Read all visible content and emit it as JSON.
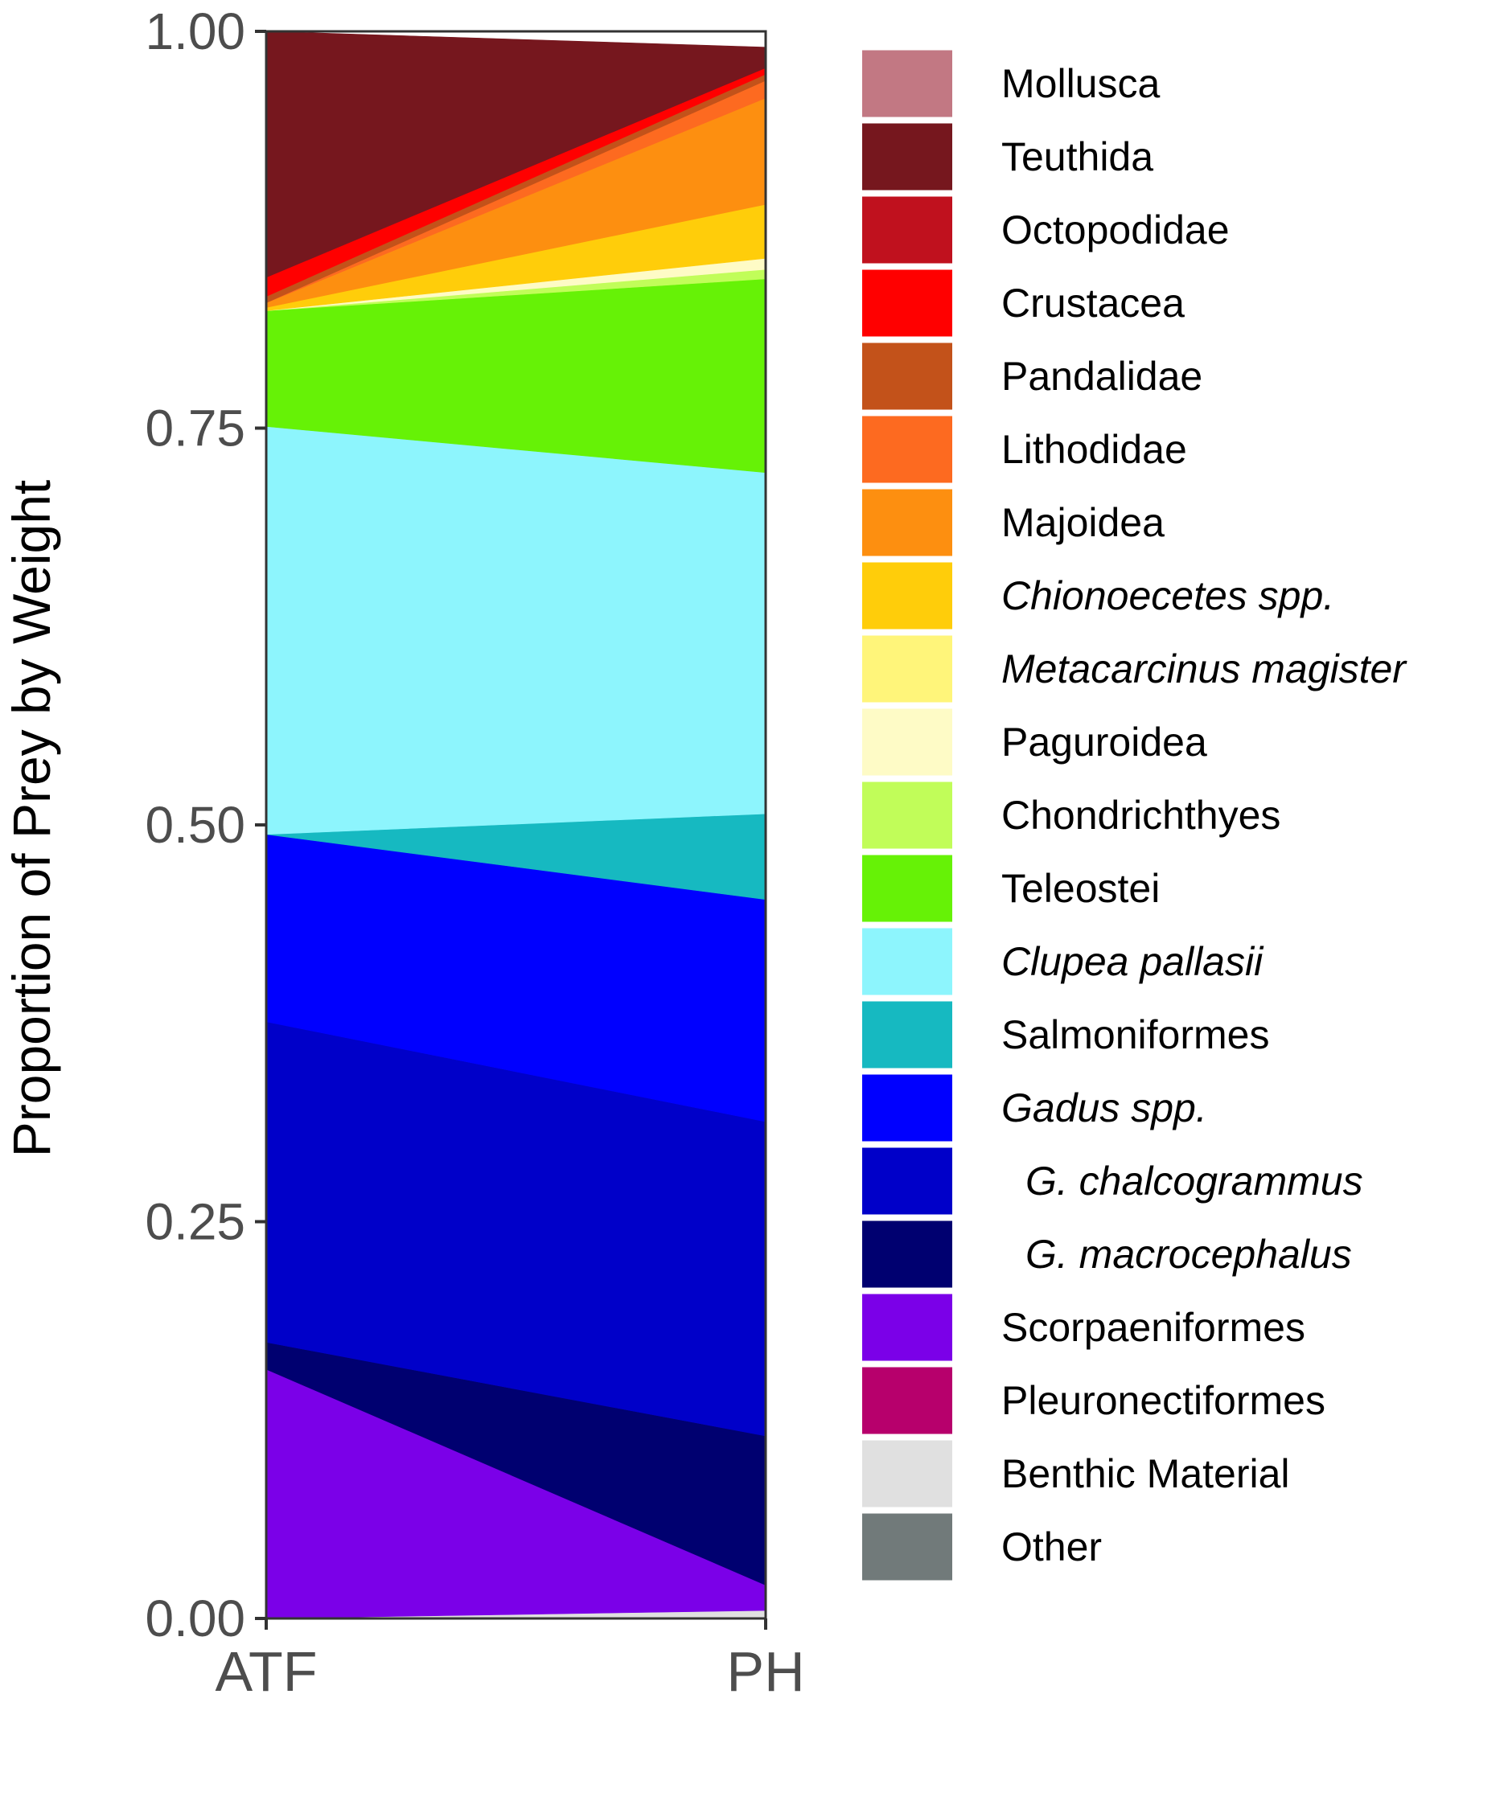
{
  "chart_data": {
    "type": "area",
    "x": [
      "ATF",
      "PH"
    ],
    "xlabel": "",
    "ylabel": "Proportion of Prey by Weight",
    "ylim": [
      0,
      1
    ],
    "yticks": [
      "0.00",
      "0.25",
      "0.50",
      "0.75",
      "1.00"
    ],
    "legend_position": "right",
    "grid": false,
    "stacking_order": "first series at top, last series at bottom",
    "series": [
      {
        "name": "Mollusca",
        "color": "#c27883",
        "italic": false,
        "values": [
          0.0,
          0.0
        ]
      },
      {
        "name": "Teuthida",
        "color": "#76171e",
        "italic": false,
        "values": [
          0.155,
          0.013
        ]
      },
      {
        "name": "Octopodidae",
        "color": "#c0111e",
        "italic": false,
        "values": [
          0.0,
          0.0
        ]
      },
      {
        "name": "Crustacea",
        "color": "#ff0000",
        "italic": false,
        "values": [
          0.012,
          0.004
        ]
      },
      {
        "name": "Pandalidae",
        "color": "#c3521a",
        "italic": false,
        "values": [
          0.004,
          0.004
        ]
      },
      {
        "name": "Lithodidae",
        "color": "#fd6a20",
        "italic": false,
        "values": [
          0.0,
          0.011
        ]
      },
      {
        "name": "Majoidea",
        "color": "#fd8f10",
        "italic": false,
        "values": [
          0.003,
          0.067
        ]
      },
      {
        "name": "Chionoecetes spp.",
        "color": "#ffcd0a",
        "italic": true,
        "values": [
          0.002,
          0.034
        ]
      },
      {
        "name": "Metacarcinus magister",
        "color": "#fff57a",
        "italic": true,
        "values": [
          0.0,
          0.0
        ]
      },
      {
        "name": "Paguroidea",
        "color": "#fefbc6",
        "italic": false,
        "values": [
          0.0,
          0.007
        ]
      },
      {
        "name": "Chondrichthyes",
        "color": "#c1fd59",
        "italic": false,
        "values": [
          0.0,
          0.006
        ]
      },
      {
        "name": "Teleostei",
        "color": "#66f206",
        "italic": false,
        "values": [
          0.073,
          0.122
        ]
      },
      {
        "name": "Clupea pallasii",
        "color": "#8df5fd",
        "italic": true,
        "values": [
          0.257,
          0.215
        ]
      },
      {
        "name": "Salmoniformes",
        "color": "#16b9c1",
        "italic": false,
        "values": [
          0.0,
          0.054
        ]
      },
      {
        "name": "Gadus spp.",
        "color": "#0000ff",
        "italic": true,
        "values": [
          0.118,
          0.14
        ]
      },
      {
        "name": "G. chalcogrammus",
        "color": "#0000c9",
        "italic": true,
        "indent": true,
        "values": [
          0.202,
          0.198
        ]
      },
      {
        "name": "G. macrocephalus",
        "color": "#000070",
        "italic": true,
        "indent": true,
        "values": [
          0.017,
          0.094
        ]
      },
      {
        "name": "Scorpaeniformes",
        "color": "#7b00e8",
        "italic": false,
        "values": [
          0.157,
          0.016
        ]
      },
      {
        "name": "Pleuronectiformes",
        "color": "#b7006c",
        "italic": false,
        "values": [
          0.0,
          0.0
        ]
      },
      {
        "name": "Benthic Material",
        "color": "#e0e0e0",
        "italic": false,
        "values": [
          0.0,
          0.005
        ]
      },
      {
        "name": "Other",
        "color": "#717a7a",
        "italic": false,
        "values": [
          0.0,
          0.0
        ]
      }
    ]
  }
}
